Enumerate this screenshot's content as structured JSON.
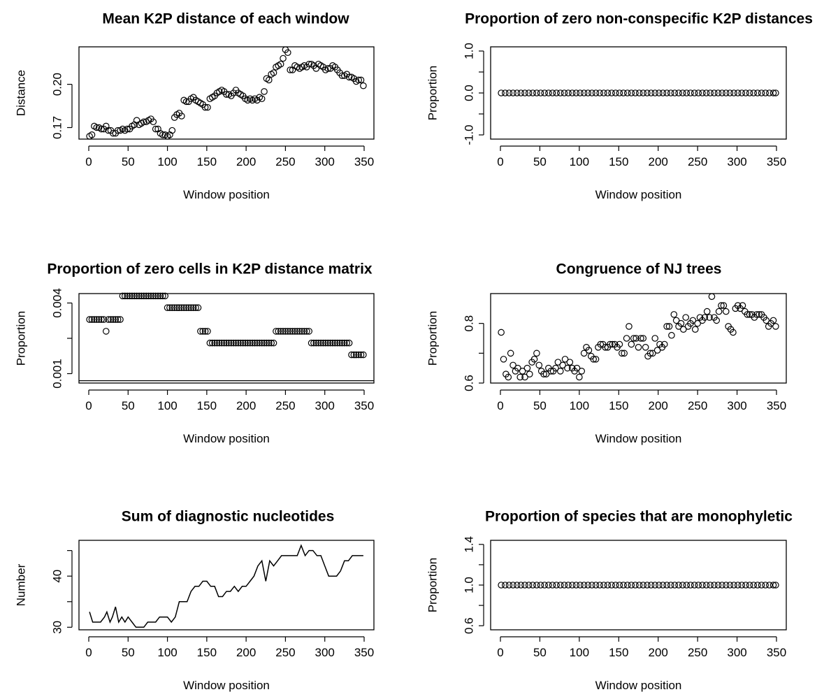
{
  "figure": {
    "background": "#ffffff",
    "foreground": "#000000"
  },
  "chart_data": [
    {
      "type": "scatter",
      "title": "Mean K2P distance of each window",
      "xlabel": "Window position",
      "ylabel": "Distance",
      "xlim": [
        0,
        350
      ],
      "ylim": [
        0.162,
        0.226
      ],
      "xticks": [
        0,
        50,
        100,
        150,
        200,
        250,
        300,
        350
      ],
      "yticks": [
        0.17,
        0.2
      ],
      "xtick_labels": [
        "0",
        "50",
        "100",
        "150",
        "200",
        "250",
        "300",
        "350"
      ],
      "ytick_labels": [
        "0.17",
        "0.20"
      ],
      "x": [
        1,
        4,
        7,
        10,
        13,
        16,
        19,
        22,
        25,
        28,
        31,
        34,
        37,
        40,
        43,
        46,
        49,
        52,
        55,
        58,
        61,
        64,
        67,
        70,
        73,
        76,
        79,
        82,
        85,
        88,
        91,
        94,
        97,
        100,
        103,
        106,
        109,
        112,
        115,
        118,
        121,
        124,
        127,
        130,
        133,
        136,
        139,
        142,
        145,
        148,
        151,
        154,
        157,
        160,
        163,
        166,
        169,
        172,
        175,
        178,
        181,
        184,
        187,
        190,
        193,
        196,
        199,
        202,
        205,
        208,
        211,
        214,
        217,
        220,
        223,
        226,
        229,
        232,
        235,
        238,
        241,
        244,
        247,
        250,
        253,
        256,
        259,
        262,
        265,
        268,
        271,
        274,
        277,
        280,
        283,
        286,
        289,
        292,
        295,
        298,
        301,
        304,
        307,
        310,
        313,
        316,
        319,
        322,
        325,
        328,
        331,
        334,
        337,
        340,
        343,
        346,
        349
      ],
      "y": [
        0.164,
        0.165,
        0.171,
        0.17,
        0.17,
        0.169,
        0.169,
        0.171,
        0.168,
        0.168,
        0.166,
        0.166,
        0.168,
        0.168,
        0.169,
        0.168,
        0.169,
        0.169,
        0.171,
        0.172,
        0.175,
        0.172,
        0.173,
        0.174,
        0.174,
        0.175,
        0.176,
        0.174,
        0.169,
        0.169,
        0.166,
        0.165,
        0.165,
        0.164,
        0.165,
        0.168,
        0.177,
        0.179,
        0.18,
        0.178,
        0.189,
        0.188,
        0.188,
        0.19,
        0.191,
        0.189,
        0.188,
        0.187,
        0.186,
        0.184,
        0.184,
        0.19,
        0.191,
        0.192,
        0.194,
        0.195,
        0.196,
        0.195,
        0.193,
        0.193,
        0.192,
        0.194,
        0.196,
        0.194,
        0.193,
        0.192,
        0.19,
        0.189,
        0.19,
        0.189,
        0.19,
        0.189,
        0.191,
        0.19,
        0.195,
        0.204,
        0.203,
        0.207,
        0.208,
        0.212,
        0.213,
        0.214,
        0.218,
        0.224,
        0.222,
        0.21,
        0.21,
        0.213,
        0.212,
        0.211,
        0.212,
        0.213,
        0.212,
        0.214,
        0.214,
        0.213,
        0.211,
        0.214,
        0.213,
        0.212,
        0.21,
        0.211,
        0.211,
        0.213,
        0.212,
        0.21,
        0.208,
        0.206,
        0.206,
        0.207,
        0.205,
        0.205,
        0.204,
        0.202,
        0.203,
        0.203,
        0.199
      ]
    },
    {
      "type": "scatter",
      "title": "Proportion of zero non-conspecific K2P distances",
      "xlabel": "Window position",
      "ylabel": "Proportion",
      "xlim": [
        0,
        350
      ],
      "ylim": [
        -1.1,
        1.1
      ],
      "xticks": [
        0,
        50,
        100,
        150,
        200,
        250,
        300,
        350
      ],
      "yticks": [
        -1.0,
        -0.5,
        0.0,
        0.5,
        1.0
      ],
      "xtick_labels": [
        "0",
        "50",
        "100",
        "150",
        "200",
        "250",
        "300",
        "350"
      ],
      "ytick_labels": [
        "-1.0",
        "",
        "0.0",
        "",
        "1.0"
      ],
      "x": [
        1,
        6,
        11,
        16,
        21,
        26,
        31,
        36,
        41,
        46,
        51,
        56,
        61,
        66,
        71,
        76,
        81,
        86,
        91,
        96,
        101,
        106,
        111,
        116,
        121,
        126,
        131,
        136,
        141,
        146,
        151,
        156,
        161,
        166,
        171,
        176,
        181,
        186,
        191,
        196,
        201,
        206,
        211,
        216,
        221,
        226,
        231,
        236,
        241,
        246,
        251,
        256,
        261,
        266,
        271,
        276,
        281,
        286,
        291,
        296,
        301,
        306,
        311,
        316,
        321,
        326,
        331,
        336,
        341,
        346,
        349
      ],
      "y": [
        0,
        0,
        0,
        0,
        0,
        0,
        0,
        0,
        0,
        0,
        0,
        0,
        0,
        0,
        0,
        0,
        0,
        0,
        0,
        0,
        0,
        0,
        0,
        0,
        0,
        0,
        0,
        0,
        0,
        0,
        0,
        0,
        0,
        0,
        0,
        0,
        0,
        0,
        0,
        0,
        0,
        0,
        0,
        0,
        0,
        0,
        0,
        0,
        0,
        0,
        0,
        0,
        0,
        0,
        0,
        0,
        0,
        0,
        0,
        0,
        0,
        0,
        0,
        0,
        0,
        0,
        0,
        0,
        0,
        0,
        0
      ]
    },
    {
      "type": "scatter",
      "title": "Proportion of zero cells in K2P distance matrix",
      "xlabel": "Window position",
      "ylabel": "Proportion",
      "xlim": [
        0,
        350
      ],
      "ylim": [
        0.0006,
        0.0044
      ],
      "xticks": [
        0,
        50,
        100,
        150,
        200,
        250,
        300,
        350
      ],
      "yticks": [
        0.001,
        0.0025,
        0.004
      ],
      "xtick_labels": [
        "0",
        "50",
        "100",
        "150",
        "200",
        "250",
        "300",
        "350"
      ],
      "ytick_labels": [
        "0.001",
        "",
        "0.004"
      ],
      "hline": 0.0007,
      "x": [
        1,
        4,
        7,
        10,
        13,
        16,
        19,
        22,
        25,
        28,
        31,
        34,
        37,
        40,
        43,
        46,
        49,
        52,
        55,
        58,
        61,
        64,
        67,
        70,
        73,
        76,
        79,
        82,
        85,
        88,
        91,
        94,
        97,
        100,
        103,
        106,
        109,
        112,
        115,
        118,
        121,
        124,
        127,
        130,
        133,
        136,
        139,
        142,
        145,
        148,
        151,
        154,
        157,
        160,
        163,
        166,
        169,
        172,
        175,
        178,
        181,
        184,
        187,
        190,
        193,
        196,
        199,
        202,
        205,
        208,
        211,
        214,
        217,
        220,
        223,
        226,
        229,
        232,
        235,
        238,
        241,
        244,
        247,
        250,
        253,
        256,
        259,
        262,
        265,
        268,
        271,
        274,
        277,
        280,
        283,
        286,
        289,
        292,
        295,
        298,
        301,
        304,
        307,
        310,
        313,
        316,
        319,
        322,
        325,
        328,
        331,
        334,
        337,
        340,
        343,
        346,
        349
      ],
      "y": [
        0.0033,
        0.0033,
        0.0033,
        0.0033,
        0.0033,
        0.0033,
        0.0033,
        0.0028,
        0.0033,
        0.0033,
        0.0033,
        0.0033,
        0.0033,
        0.0033,
        0.0043,
        0.0043,
        0.0043,
        0.0043,
        0.0043,
        0.0043,
        0.0043,
        0.0043,
        0.0043,
        0.0043,
        0.0043,
        0.0043,
        0.0043,
        0.0043,
        0.0043,
        0.0043,
        0.0043,
        0.0043,
        0.0043,
        0.0038,
        0.0038,
        0.0038,
        0.0038,
        0.0038,
        0.0038,
        0.0038,
        0.0038,
        0.0038,
        0.0038,
        0.0038,
        0.0038,
        0.0038,
        0.0038,
        0.0028,
        0.0028,
        0.0028,
        0.0028,
        0.0023,
        0.0023,
        0.0023,
        0.0023,
        0.0023,
        0.0023,
        0.0023,
        0.0023,
        0.0023,
        0.0023,
        0.0023,
        0.0023,
        0.0023,
        0.0023,
        0.0023,
        0.0023,
        0.0023,
        0.0023,
        0.0023,
        0.0023,
        0.0023,
        0.0023,
        0.0023,
        0.0023,
        0.0023,
        0.0023,
        0.0023,
        0.0023,
        0.0028,
        0.0028,
        0.0028,
        0.0028,
        0.0028,
        0.0028,
        0.0028,
        0.0028,
        0.0028,
        0.0028,
        0.0028,
        0.0028,
        0.0028,
        0.0028,
        0.0028,
        0.0023,
        0.0023,
        0.0023,
        0.0023,
        0.0023,
        0.0023,
        0.0023,
        0.0023,
        0.0023,
        0.0023,
        0.0023,
        0.0023,
        0.0023,
        0.0023,
        0.0023,
        0.0023,
        0.0023,
        0.0018,
        0.0018,
        0.0018,
        0.0018,
        0.0018,
        0.0018
      ]
    },
    {
      "type": "scatter",
      "title": "Congruence of NJ trees",
      "xlabel": "Window position",
      "ylabel": "Proportion",
      "xlim": [
        0,
        350
      ],
      "ylim": [
        0.6,
        0.9
      ],
      "xticks": [
        0,
        50,
        100,
        150,
        200,
        250,
        300,
        350
      ],
      "yticks": [
        0.6,
        0.7,
        0.8
      ],
      "xtick_labels": [
        "0",
        "50",
        "100",
        "150",
        "200",
        "250",
        "300",
        "350"
      ],
      "ytick_labels": [
        "0.6",
        "",
        "0.8"
      ],
      "x": [
        1,
        4,
        7,
        10,
        13,
        16,
        19,
        22,
        25,
        28,
        31,
        34,
        37,
        40,
        43,
        46,
        49,
        52,
        55,
        58,
        61,
        64,
        67,
        70,
        73,
        76,
        79,
        82,
        85,
        88,
        91,
        94,
        97,
        100,
        103,
        106,
        109,
        112,
        115,
        118,
        121,
        124,
        127,
        130,
        133,
        136,
        139,
        142,
        145,
        148,
        151,
        154,
        157,
        160,
        163,
        166,
        169,
        172,
        175,
        178,
        181,
        184,
        187,
        190,
        193,
        196,
        199,
        202,
        205,
        208,
        211,
        214,
        217,
        220,
        223,
        226,
        229,
        232,
        235,
        238,
        241,
        244,
        247,
        250,
        253,
        256,
        259,
        262,
        265,
        268,
        271,
        274,
        277,
        280,
        283,
        286,
        289,
        292,
        295,
        298,
        301,
        304,
        307,
        310,
        313,
        316,
        319,
        322,
        325,
        328,
        331,
        334,
        337,
        340,
        343,
        346,
        349
      ],
      "y": [
        0.77,
        0.68,
        0.63,
        0.62,
        0.7,
        0.66,
        0.64,
        0.65,
        0.62,
        0.64,
        0.62,
        0.65,
        0.63,
        0.67,
        0.68,
        0.7,
        0.66,
        0.64,
        0.63,
        0.63,
        0.65,
        0.64,
        0.64,
        0.65,
        0.67,
        0.64,
        0.66,
        0.68,
        0.65,
        0.67,
        0.65,
        0.64,
        0.65,
        0.62,
        0.64,
        0.7,
        0.72,
        0.71,
        0.69,
        0.68,
        0.68,
        0.72,
        0.73,
        0.73,
        0.72,
        0.72,
        0.73,
        0.73,
        0.73,
        0.72,
        0.73,
        0.7,
        0.7,
        0.75,
        0.79,
        0.73,
        0.75,
        0.75,
        0.72,
        0.75,
        0.75,
        0.72,
        0.69,
        0.7,
        0.7,
        0.75,
        0.71,
        0.73,
        0.72,
        0.73,
        0.79,
        0.79,
        0.76,
        0.83,
        0.81,
        0.79,
        0.8,
        0.78,
        0.82,
        0.79,
        0.8,
        0.81,
        0.78,
        0.8,
        0.82,
        0.81,
        0.82,
        0.84,
        0.82,
        0.89,
        0.82,
        0.81,
        0.84,
        0.86,
        0.86,
        0.84,
        0.79,
        0.78,
        0.77,
        0.85,
        0.86,
        0.85,
        0.86,
        0.84,
        0.83,
        0.83,
        0.83,
        0.82,
        0.83,
        0.83,
        0.83,
        0.82,
        0.81,
        0.79,
        0.8,
        0.81,
        0.79
      ]
    },
    {
      "type": "line",
      "title": "Sum of diagnostic nucleotides",
      "xlabel": "Window position",
      "ylabel": "Number",
      "xlim": [
        0,
        350
      ],
      "ylim": [
        29.5,
        47
      ],
      "xticks": [
        0,
        50,
        100,
        150,
        200,
        250,
        300,
        350
      ],
      "yticks": [
        30,
        35,
        40,
        45
      ],
      "xtick_labels": [
        "0",
        "50",
        "100",
        "150",
        "200",
        "250",
        "300",
        "350"
      ],
      "ytick_labels": [
        "30",
        "",
        "40",
        ""
      ],
      "x": [
        1,
        5,
        10,
        15,
        20,
        23,
        27,
        30,
        34,
        38,
        42,
        46,
        50,
        55,
        60,
        65,
        70,
        75,
        80,
        85,
        90,
        95,
        100,
        105,
        110,
        115,
        120,
        125,
        130,
        135,
        140,
        145,
        150,
        155,
        160,
        165,
        170,
        175,
        180,
        185,
        190,
        195,
        200,
        205,
        210,
        215,
        220,
        225,
        230,
        235,
        240,
        245,
        250,
        255,
        260,
        265,
        270,
        275,
        280,
        285,
        290,
        295,
        300,
        305,
        310,
        315,
        320,
        325,
        330,
        335,
        340,
        345,
        349
      ],
      "y": [
        33,
        31,
        31,
        31,
        32,
        33,
        31,
        32,
        34,
        31,
        32,
        31,
        32,
        31,
        30,
        30,
        30,
        31,
        31,
        31,
        32,
        32,
        32,
        31,
        32,
        35,
        35,
        35,
        37,
        38,
        38,
        39,
        39,
        38,
        38,
        36,
        36,
        37,
        37,
        38,
        37,
        38,
        38,
        39,
        40,
        42,
        43,
        39,
        43,
        42,
        43,
        44,
        44,
        44,
        44,
        44,
        46,
        44,
        45,
        45,
        44,
        44,
        42,
        40,
        40,
        40,
        41,
        43,
        43,
        44,
        44,
        44,
        44
      ]
    },
    {
      "type": "scatter",
      "title": "Proportion of species that are monophyletic",
      "xlabel": "Window position",
      "ylabel": "Proportion",
      "xlim": [
        0,
        350
      ],
      "ylim": [
        0.56,
        1.44
      ],
      "xticks": [
        0,
        50,
        100,
        150,
        200,
        250,
        300,
        350
      ],
      "yticks": [
        0.6,
        0.8,
        1.0,
        1.2,
        1.4
      ],
      "xtick_labels": [
        "0",
        "50",
        "100",
        "150",
        "200",
        "250",
        "300",
        "350"
      ],
      "ytick_labels": [
        "0.6",
        "",
        "1.0",
        "",
        "1.4"
      ],
      "x": [
        1,
        6,
        11,
        16,
        21,
        26,
        31,
        36,
        41,
        46,
        51,
        56,
        61,
        66,
        71,
        76,
        81,
        86,
        91,
        96,
        101,
        106,
        111,
        116,
        121,
        126,
        131,
        136,
        141,
        146,
        151,
        156,
        161,
        166,
        171,
        176,
        181,
        186,
        191,
        196,
        201,
        206,
        211,
        216,
        221,
        226,
        231,
        236,
        241,
        246,
        251,
        256,
        261,
        266,
        271,
        276,
        281,
        286,
        291,
        296,
        301,
        306,
        311,
        316,
        321,
        326,
        331,
        336,
        341,
        346,
        349
      ],
      "y": [
        1,
        1,
        1,
        1,
        1,
        1,
        1,
        1,
        1,
        1,
        1,
        1,
        1,
        1,
        1,
        1,
        1,
        1,
        1,
        1,
        1,
        1,
        1,
        1,
        1,
        1,
        1,
        1,
        1,
        1,
        1,
        1,
        1,
        1,
        1,
        1,
        1,
        1,
        1,
        1,
        1,
        1,
        1,
        1,
        1,
        1,
        1,
        1,
        1,
        1,
        1,
        1,
        1,
        1,
        1,
        1,
        1,
        1,
        1,
        1,
        1,
        1,
        1,
        1,
        1,
        1,
        1,
        1,
        1,
        1,
        1
      ]
    }
  ]
}
